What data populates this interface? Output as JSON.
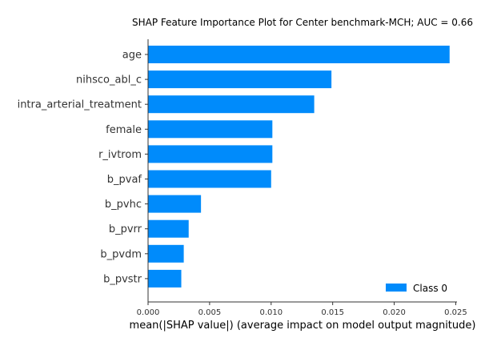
{
  "chart_data": {
    "type": "bar",
    "orientation": "horizontal",
    "title": "SHAP Feature Importance Plot for Center benchmark-MCH; AUC = 0.66",
    "xlabel": "mean(|SHAP value|) (average impact on model output magnitude)",
    "ylabel": "",
    "categories": [
      "age",
      "nihsco_abl_c",
      "intra_arterial_treatment",
      "female",
      "r_ivtrom",
      "b_pvaf",
      "b_pvhc",
      "b_pvrr",
      "b_pvdm",
      "b_pvstr"
    ],
    "series": [
      {
        "name": "Class 0",
        "color": "#008bfb",
        "values": [
          0.0245,
          0.0149,
          0.0135,
          0.0101,
          0.0101,
          0.01,
          0.0043,
          0.0033,
          0.0029,
          0.0027
        ]
      }
    ],
    "xlim": [
      0,
      0.0251
    ],
    "xticks": [
      0.0,
      0.005,
      0.01,
      0.015,
      0.02,
      0.025
    ],
    "xtick_labels": [
      "0.000",
      "0.005",
      "0.010",
      "0.015",
      "0.020",
      "0.025"
    ],
    "legend_position": "lower-right",
    "grid": false
  }
}
